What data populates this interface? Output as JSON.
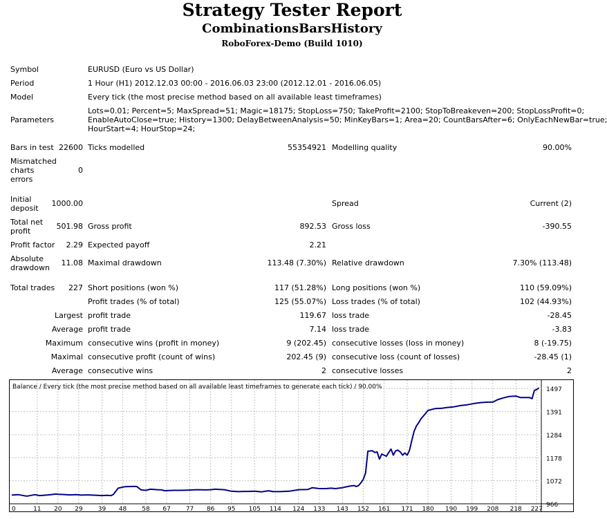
{
  "header": {
    "title": "Strategy Tester Report",
    "ea_name": "CombinationsBarsHistory",
    "server": "RoboForex-Demo (Build 1010)"
  },
  "info": {
    "symbol_label": "Symbol",
    "symbol_value": "EURUSD (Euro vs US Dollar)",
    "period_label": "Period",
    "period_value": "1 Hour (H1) 2012.12.03 00:00 - 2016.06.03 23:00 (2012.12.01 - 2016.06.05)",
    "model_label": "Model",
    "model_value": "Every tick (the most precise method based on all available least timeframes)",
    "parameters_label": "Parameters",
    "parameters_line1": "Lots=0.01; Percent=5; MaxSpread=51; Magic=18175; StopLoss=750; TakeProfit=2100; StopToBreakeven=200; StopLossProfit=0;",
    "parameters_line2": "EnableAutoClose=true; History=1300; DelayBetweenAnalysis=50; MinKeyBars=1; Area=20; CountBarsAfter=6; OnlyEachNewBar=true;",
    "parameters_line3": "HourStart=4; HourStop=24;"
  },
  "stats": {
    "bars_label": "Bars in test",
    "bars_value": "22600",
    "ticks_label": "Ticks modelled",
    "ticks_value": "55354921",
    "quality_label": "Modelling quality",
    "quality_value": "90.00%",
    "mismatch_line1": "Mismatched",
    "mismatch_line2": "charts",
    "mismatch_line3": "errors",
    "mismatch_value": "0",
    "deposit_line1": "Initial",
    "deposit_line2": "deposit",
    "deposit_value": "1000.00",
    "spread_label": "Spread",
    "spread_value": "Current (2)",
    "netprofit_line1": "Total net",
    "netprofit_line2": "profit",
    "netprofit_value": "501.98",
    "grossprofit_label": "Gross profit",
    "grossprofit_value": "892.53",
    "grossloss_label": "Gross loss",
    "grossloss_value": "-390.55",
    "pf_label": "Profit factor",
    "pf_value": "2.29",
    "payoff_label": "Expected payoff",
    "payoff_value": "2.21",
    "absdd_line1": "Absolute",
    "absdd_line2": "drawdown",
    "absdd_value": "11.08",
    "maxdd_label": "Maximal drawdown",
    "maxdd_value": "113.48 (7.30%)",
    "reldd_label": "Relative drawdown",
    "reldd_value": "7.30% (113.48)",
    "trades_label": "Total trades",
    "trades_value": "227",
    "short_label": "Short positions (won %)",
    "short_value": "117 (51.28%)",
    "long_label": "Long positions (won %)",
    "long_value": "110 (59.09%)",
    "profit_trades_label": "Profit trades (% of total)",
    "profit_trades_value": "125 (55.07%)",
    "loss_trades_label": "Loss trades (% of total)",
    "loss_trades_value": "102 (44.93%)",
    "largest_label": "Largest",
    "largest_profit_label": "profit trade",
    "largest_profit_value": "119.67",
    "largest_loss_label": "loss trade",
    "largest_loss_value": "-28.45",
    "average_label": "Average",
    "average_profit_label": "profit trade",
    "average_profit_value": "7.14",
    "average_loss_label": "loss trade",
    "average_loss_value": "-3.83",
    "maximum_label": "Maximum",
    "max_cw_label": "consecutive wins (profit in money)",
    "max_cw_value": "9 (202.45)",
    "max_cl_label": "consecutive losses (loss in money)",
    "max_cl_value": "8 (-19.75)",
    "maximal_label": "Maximal",
    "maximal_cp_label": "consecutive profit (count of wins)",
    "maximal_cp_value": "202.45 (9)",
    "maximal_cl_label": "consecutive loss (count of losses)",
    "maximal_cl_value": "-28.45 (1)",
    "avg_consec_label": "Average",
    "avg_cw_label": "consecutive wins",
    "avg_cw_value": "2",
    "avg_cl_label": "consecutive losses",
    "avg_cl_value": "2"
  },
  "colors": {
    "line": "#00008b",
    "grid": "#c0c0c0",
    "border": "#000000"
  },
  "chart_data": {
    "type": "line",
    "title": "Balance / Every tick (the most precise method based on all available least timeframes to generate each tick) / 90.00%",
    "x_ticks": [
      0,
      11,
      20,
      29,
      39,
      48,
      58,
      67,
      77,
      86,
      95,
      105,
      114,
      124,
      133,
      143,
      152,
      161,
      171,
      180,
      190,
      199,
      208,
      218,
      227
    ],
    "y_ticks": [
      966,
      1072,
      1178,
      1284,
      1391,
      1497
    ],
    "xlim": [
      0,
      229
    ],
    "ylim": [
      966,
      1526
    ],
    "grid": true,
    "series": [
      {
        "x": [
          0,
          3,
          6,
          7,
          10,
          12,
          15,
          17,
          19,
          20,
          22,
          25,
          28,
          30,
          33,
          37,
          39,
          41,
          43,
          44,
          46,
          49,
          52,
          54,
          56,
          58,
          60,
          63,
          65,
          66,
          70,
          73,
          76,
          80,
          84,
          86,
          88,
          90,
          92,
          95,
          98,
          100,
          102,
          105,
          108,
          111,
          113,
          116,
          120,
          124,
          128,
          130,
          133,
          136,
          138,
          140,
          143,
          146,
          148,
          149,
          150,
          151,
          152,
          153,
          154,
          156,
          157,
          158,
          159,
          160,
          161,
          162,
          163,
          164,
          165,
          166,
          167,
          168,
          169,
          170,
          171,
          172,
          173,
          174,
          175,
          176,
          177,
          178,
          180,
          183,
          186,
          188,
          191,
          194,
          197,
          200,
          203,
          206,
          208,
          210,
          212,
          215,
          218,
          220,
          222,
          224,
          225,
          226,
          227,
          228
        ],
        "y": [
          1006,
          1008,
          1002,
          1002,
          1008,
          1004,
          1006,
          1008,
          1011,
          1010,
          1009,
          1007,
          1008,
          1006,
          1007,
          1005,
          1004,
          1005,
          1004,
          1010,
          1038,
          1045,
          1046,
          1046,
          1030,
          1028,
          1033,
          1031,
          1030,
          1026,
          1028,
          1028,
          1029,
          1031,
          1030,
          1031,
          1033,
          1032,
          1031,
          1024,
          1022,
          1023,
          1023,
          1024,
          1021,
          1026,
          1022,
          1022,
          1024,
          1031,
          1032,
          1040,
          1036,
          1036,
          1038,
          1036,
          1040,
          1047,
          1050,
          1046,
          1050,
          1063,
          1078,
          1108,
          1208,
          1210,
          1202,
          1205,
          1172,
          1195,
          1190,
          1185,
          1202,
          1218,
          1190,
          1210,
          1213,
          1205,
          1190,
          1200,
          1190,
          1212,
          1258,
          1300,
          1325,
          1340,
          1358,
          1370,
          1396,
          1404,
          1406,
          1409,
          1412,
          1418,
          1422,
          1428,
          1432,
          1434,
          1434,
          1445,
          1452,
          1460,
          1462,
          1455,
          1455,
          1455,
          1450,
          1488,
          1492,
          1500
        ]
      }
    ]
  }
}
